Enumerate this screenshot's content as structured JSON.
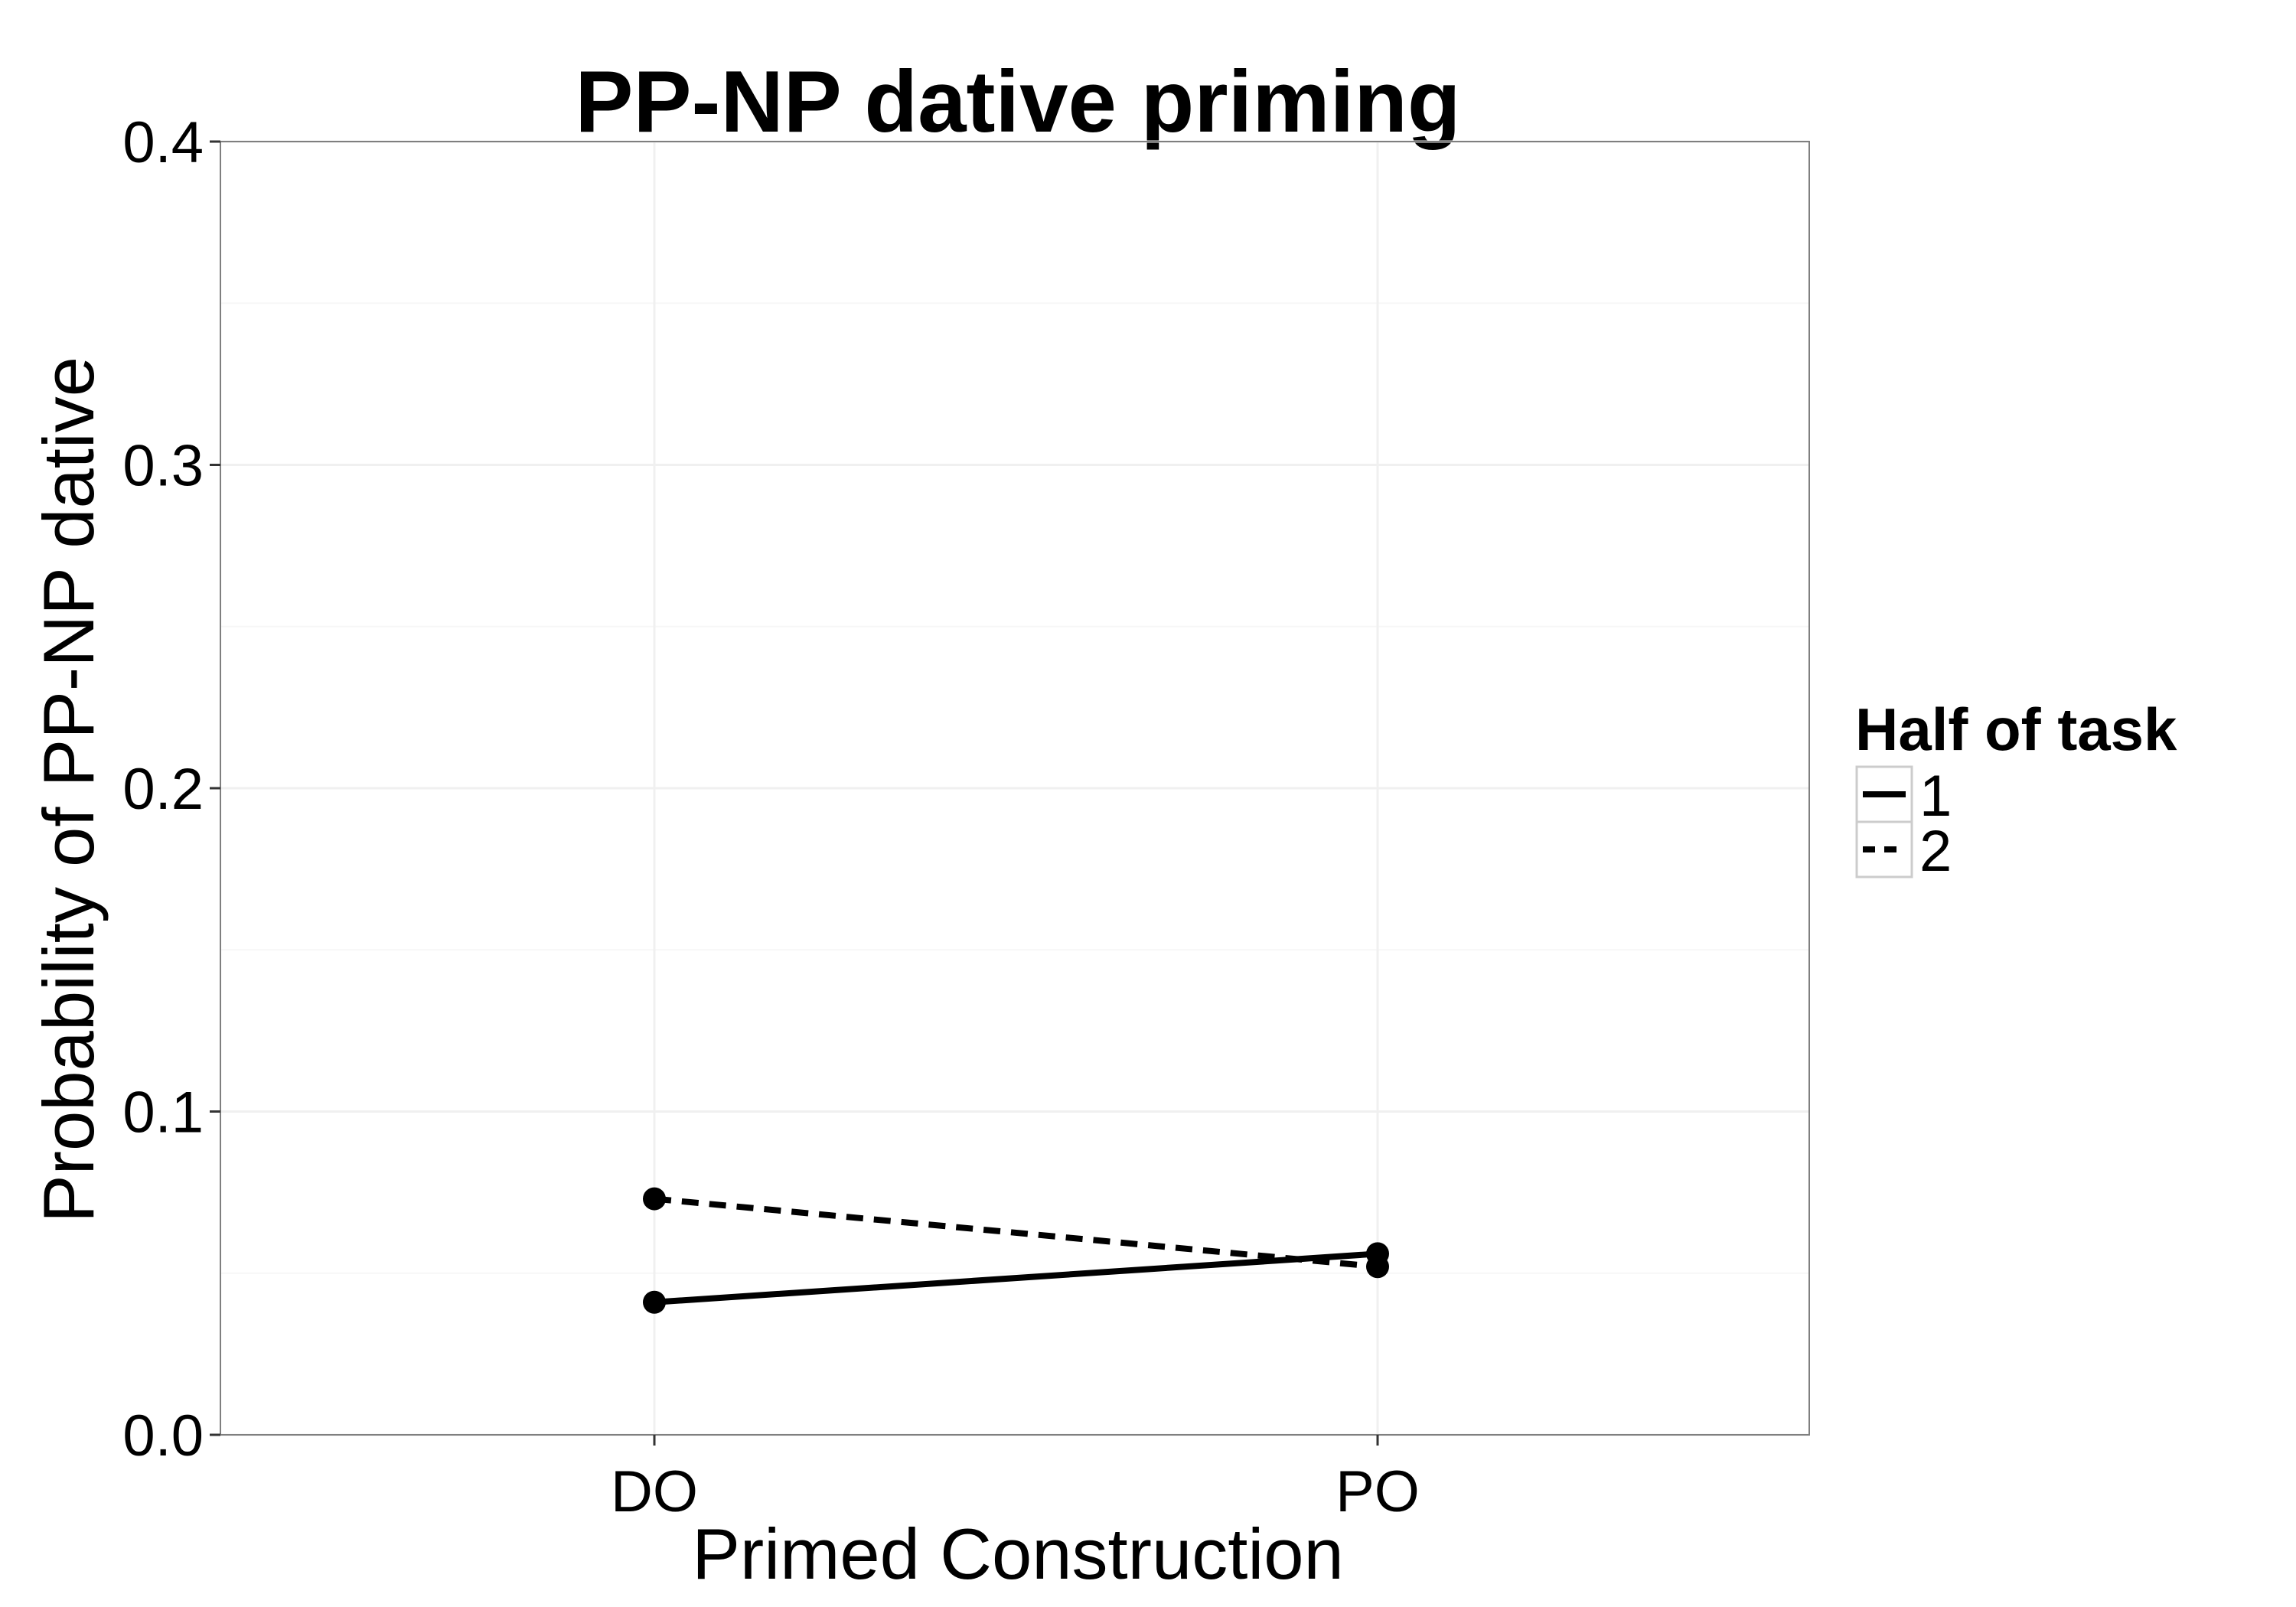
{
  "chart_data": {
    "type": "line",
    "title": "PP-NP dative priming",
    "xlabel": "Primed Construction",
    "ylabel": "Probability of PP-NP dative",
    "categories": [
      "DO",
      "PO"
    ],
    "ylim": [
      0.0,
      0.4
    ],
    "yticks": [
      "0.0",
      "0.1",
      "0.2",
      "0.3",
      "0.4"
    ],
    "grid": true,
    "legend": {
      "title": "Half of task",
      "position": "right"
    },
    "series": [
      {
        "name": "1",
        "linestyle": "solid",
        "values": [
          0.041,
          0.056
        ]
      },
      {
        "name": "2",
        "linestyle": "dashed",
        "values": [
          0.073,
          0.052
        ]
      }
    ],
    "colors": {
      "line": "#000000",
      "grid": "#f0f0f0",
      "panel_border": "#7f7f7f",
      "background": "#ffffff"
    }
  }
}
